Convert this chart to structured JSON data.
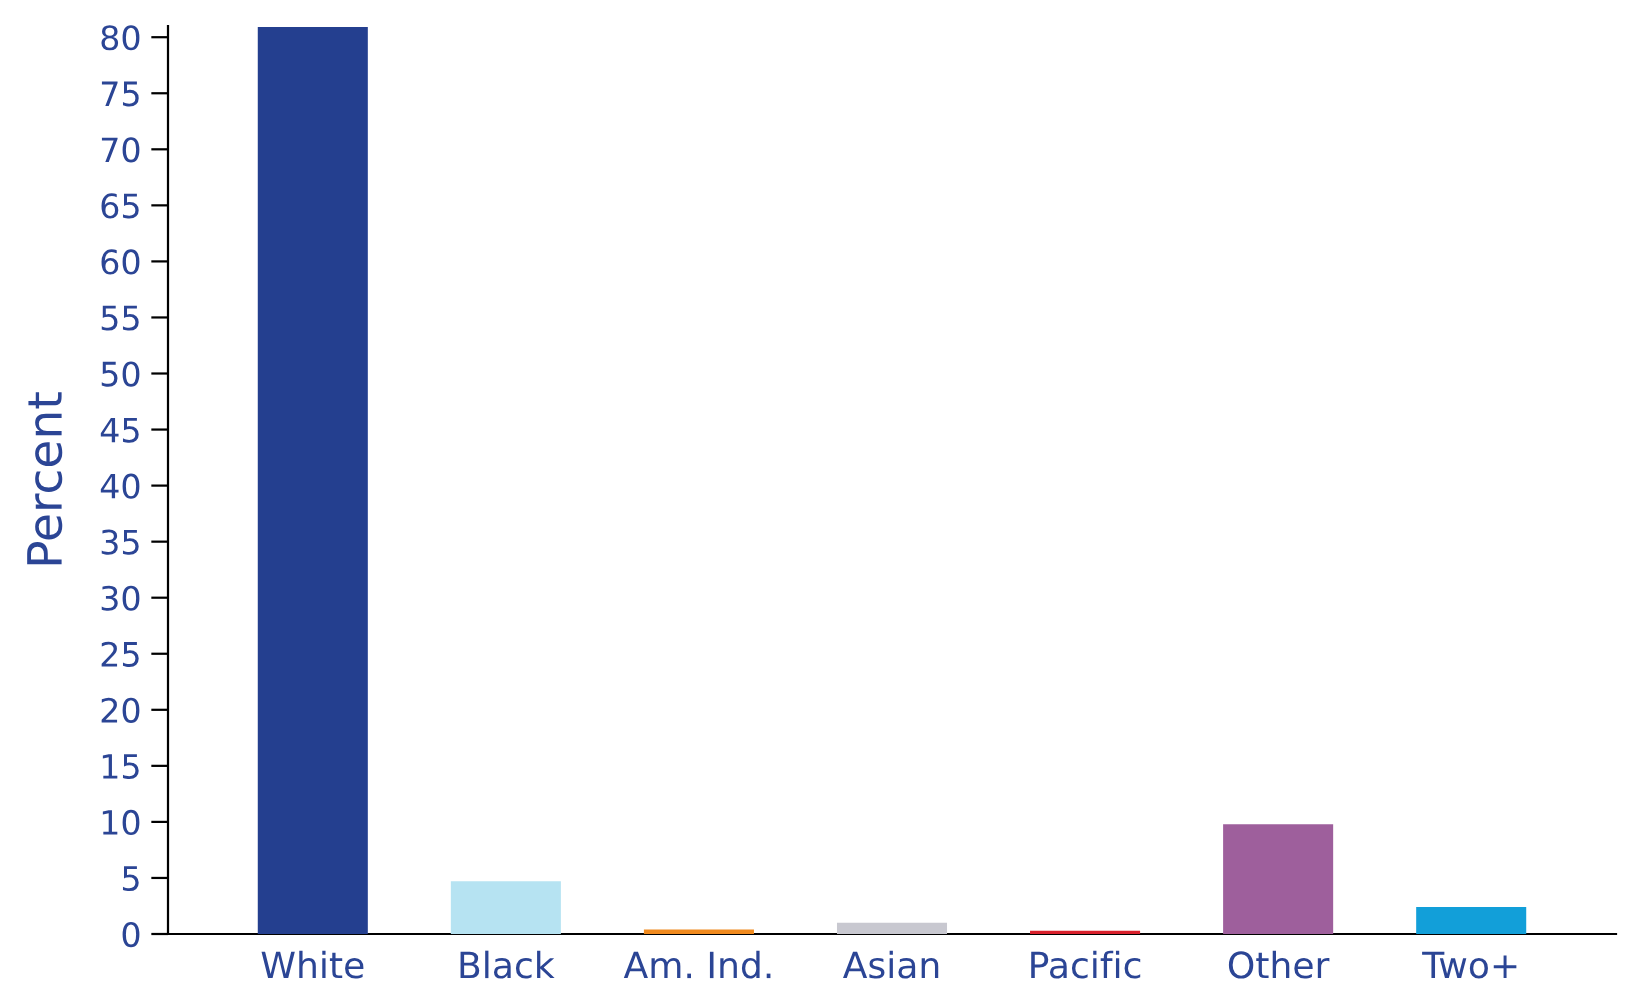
{
  "chart_data": {
    "type": "bar",
    "ylabel": "Percent",
    "categories": [
      "White",
      "Black",
      "Am. Ind.",
      "Asian",
      "Pacific",
      "Other",
      "Two+"
    ],
    "values": [
      80.9,
      4.7,
      0.4,
      1.0,
      0.3,
      9.8,
      2.4
    ],
    "colors": [
      "#243f8f",
      "#b6e3f2",
      "#f08a1e",
      "#c8c8d0",
      "#d9202b",
      "#9e5f9c",
      "#129fd9"
    ],
    "ylim": [
      0,
      81
    ],
    "yticks": [
      0,
      5,
      10,
      15,
      20,
      25,
      30,
      35,
      40,
      45,
      50,
      55,
      60,
      65,
      70,
      75,
      80
    ],
    "grid": false,
    "legend": false
  }
}
